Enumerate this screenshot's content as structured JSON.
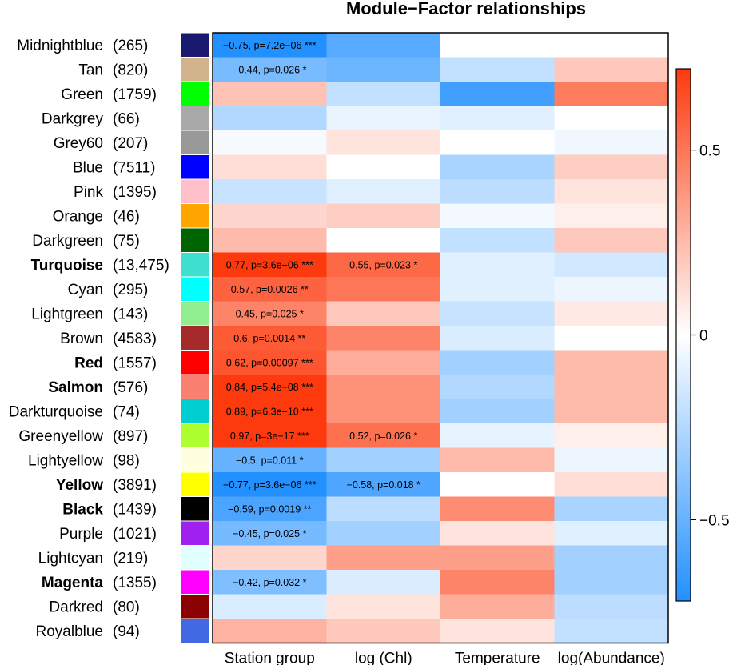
{
  "chart_data": {
    "type": "heatmap",
    "title": "Module−Factor relationships",
    "columns": [
      "Station group",
      "log (Chl)",
      "Temperature",
      "log(Abundance)"
    ],
    "rows": [
      {
        "name": "Midnightblue",
        "count": "(265)",
        "swatch": "#191970",
        "highlight": "",
        "values": [
          -0.75,
          -0.55,
          0.0,
          0.0
        ],
        "labels": [
          "−0.75, p=7.2e−06 ***",
          "",
          "",
          ""
        ]
      },
      {
        "name": "Tan",
        "count": "(820)",
        "swatch": "#d2b48c",
        "highlight": "",
        "values": [
          -0.44,
          -0.48,
          -0.2,
          0.2
        ],
        "labels": [
          "−0.44, p=0.026 *",
          "",
          "",
          ""
        ]
      },
      {
        "name": "Green",
        "count": "(1759)",
        "swatch": "#00ff00",
        "highlight": "",
        "values": [
          0.22,
          -0.2,
          -0.62,
          0.48
        ],
        "labels": [
          "",
          "",
          "",
          ""
        ]
      },
      {
        "name": "Darkgrey",
        "count": "(66)",
        "swatch": "#a9a9a9",
        "highlight": "",
        "values": [
          -0.25,
          -0.07,
          -0.1,
          0.0
        ],
        "labels": [
          "",
          "",
          "",
          ""
        ]
      },
      {
        "name": "Grey60",
        "count": "(207)",
        "swatch": "#999999",
        "highlight": "",
        "values": [
          -0.03,
          0.1,
          0.0,
          -0.05
        ],
        "labels": [
          "",
          "",
          "",
          ""
        ]
      },
      {
        "name": "Blue",
        "count": "(7511)",
        "swatch": "#0000ff",
        "highlight": "",
        "values": [
          0.12,
          0.0,
          -0.28,
          0.18
        ],
        "labels": [
          "",
          "",
          "",
          ""
        ]
      },
      {
        "name": "Pink",
        "count": "(1395)",
        "swatch": "#ffc0cb",
        "highlight": "",
        "values": [
          -0.18,
          -0.1,
          -0.22,
          0.1
        ],
        "labels": [
          "",
          "",
          "",
          ""
        ]
      },
      {
        "name": "Orange",
        "count": "(46)",
        "swatch": "#ffa500",
        "highlight": "",
        "values": [
          0.15,
          0.18,
          -0.04,
          0.06
        ],
        "labels": [
          "",
          "",
          "",
          ""
        ]
      },
      {
        "name": "Darkgreen",
        "count": "(75)",
        "swatch": "#006400",
        "highlight": "",
        "values": [
          0.25,
          0.0,
          -0.2,
          0.2
        ],
        "labels": [
          "",
          "",
          "",
          ""
        ]
      },
      {
        "name": "Turquoise",
        "count": "(13,475)",
        "swatch": "#40e0d0",
        "highlight": "#1a9e77",
        "values": [
          0.77,
          0.55,
          -0.1,
          -0.15
        ],
        "labels": [
          "0.77, p=3.6e−06 ***",
          "0.55, p=0.023 *",
          "",
          ""
        ]
      },
      {
        "name": "Cyan",
        "count": "(295)",
        "swatch": "#00ffff",
        "highlight": "",
        "values": [
          0.57,
          0.5,
          -0.1,
          -0.06
        ],
        "labels": [
          "0.57, p=0.0026 **",
          "",
          "",
          ""
        ]
      },
      {
        "name": "Lightgreen",
        "count": "(143)",
        "swatch": "#90ee90",
        "highlight": "",
        "values": [
          0.45,
          0.2,
          -0.18,
          0.08
        ],
        "labels": [
          "0.45, p=0.025 *",
          "",
          "",
          ""
        ]
      },
      {
        "name": "Brown",
        "count": "(4583)",
        "swatch": "#a52a2a",
        "highlight": "",
        "values": [
          0.6,
          0.45,
          -0.12,
          0.0
        ],
        "labels": [
          "0.6, p=0.0014 **",
          "",
          "",
          ""
        ]
      },
      {
        "name": "Red",
        "count": "(1557)",
        "swatch": "#ff0000",
        "highlight": "#1a9e77",
        "values": [
          0.62,
          0.3,
          -0.3,
          0.25
        ],
        "labels": [
          "0.62, p=0.00097 ***",
          "",
          "",
          ""
        ]
      },
      {
        "name": "Salmon",
        "count": "(576)",
        "swatch": "#fa8072",
        "highlight": "#1a9e77",
        "values": [
          0.84,
          0.4,
          -0.25,
          0.25
        ],
        "labels": [
          "0.84, p=5.4e−08 ***",
          "",
          "",
          ""
        ]
      },
      {
        "name": "Darkturquoise",
        "count": "(74)",
        "swatch": "#00ced1",
        "highlight": "",
        "values": [
          0.89,
          0.4,
          -0.3,
          0.25
        ],
        "labels": [
          "0.89, p=6.3e−10 ***",
          "",
          "",
          ""
        ]
      },
      {
        "name": "Greenyellow",
        "count": "(897)",
        "swatch": "#adff2f",
        "highlight": "",
        "values": [
          0.97,
          0.52,
          -0.08,
          0.06
        ],
        "labels": [
          "0.97, p=3e−17 ***",
          "0.52, p=0.026 *",
          "",
          ""
        ]
      },
      {
        "name": "Lightyellow",
        "count": "(98)",
        "swatch": "#ffffe0",
        "highlight": "",
        "values": [
          -0.5,
          -0.3,
          0.25,
          -0.06
        ],
        "labels": [
          "−0.5, p=0.011 *",
          "",
          "",
          ""
        ]
      },
      {
        "name": "Yellow",
        "count": "(3891)",
        "swatch": "#ffff00",
        "highlight": "#d26fa5",
        "values": [
          -0.77,
          -0.58,
          0.0,
          0.12
        ],
        "labels": [
          "−0.77, p=3.6e−06 ***",
          "−0.58, p=0.018 *",
          "",
          ""
        ]
      },
      {
        "name": "Black",
        "count": "(1439)",
        "swatch": "#000000",
        "highlight": "#d26fa5",
        "values": [
          -0.59,
          -0.22,
          0.42,
          -0.28
        ],
        "labels": [
          "−0.59, p=0.0019 **",
          "",
          "",
          ""
        ]
      },
      {
        "name": "Purple",
        "count": "(1021)",
        "swatch": "#a020f0",
        "highlight": "",
        "values": [
          -0.45,
          -0.3,
          0.1,
          -0.1
        ],
        "labels": [
          "−0.45, p=0.025 *",
          "",
          "",
          ""
        ]
      },
      {
        "name": "Lightcyan",
        "count": "(219)",
        "swatch": "#e0ffff",
        "highlight": "",
        "values": [
          0.15,
          0.35,
          0.35,
          -0.3
        ],
        "labels": [
          "",
          "",
          "",
          ""
        ]
      },
      {
        "name": "Magenta",
        "count": "(1355)",
        "swatch": "#ff00ff",
        "highlight": "#d26fa5",
        "values": [
          -0.42,
          -0.12,
          0.45,
          -0.3
        ],
        "labels": [
          "−0.42, p=0.032 *",
          "",
          "",
          ""
        ]
      },
      {
        "name": "Darkred",
        "count": "(80)",
        "swatch": "#8b0000",
        "highlight": "",
        "values": [
          -0.12,
          0.1,
          0.3,
          -0.22
        ],
        "labels": [
          "",
          "",
          "",
          ""
        ]
      },
      {
        "name": "Royalblue",
        "count": "(94)",
        "swatch": "#4169e1",
        "highlight": "",
        "values": [
          0.28,
          0.2,
          0.1,
          -0.2
        ],
        "labels": [
          "",
          "",
          "",
          ""
        ]
      }
    ],
    "value_range": [
      -0.72,
      0.72
    ],
    "colorbar_ticks": [
      {
        "value": 0.5,
        "label": "0.5"
      },
      {
        "value": 0,
        "label": "0"
      },
      {
        "value": -0.5,
        "label": "−0.5"
      }
    ],
    "colors": {
      "negative": "#2390ff",
      "zero": "#ffffff",
      "positive": "#fc3a0e",
      "highlight_green": "#1a9e77",
      "highlight_pink": "#d26fa5"
    }
  }
}
